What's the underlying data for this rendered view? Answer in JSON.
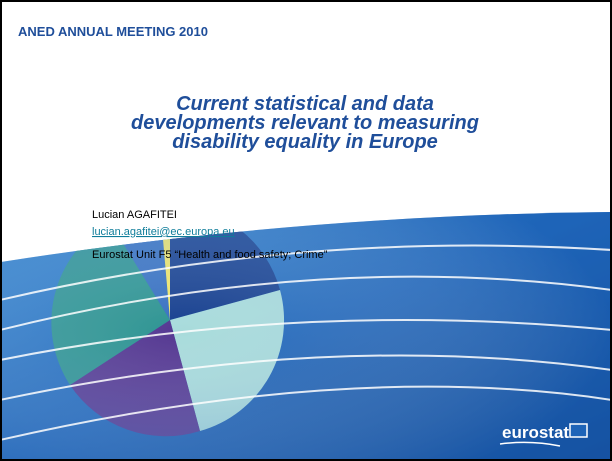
{
  "header": {
    "title": "ANED ANNUAL MEETING 2010"
  },
  "slide": {
    "title_lines": [
      "Current statistical and data",
      "developments relevant to measuring",
      "disability equality in Europe"
    ],
    "author": "Lucian AGAFITEI",
    "email": "lucian.agafitei@ec.europa.eu",
    "unit": "Eurostat Unit F5 “Health and food safety; Crime”"
  },
  "logo": {
    "text": "eurostat"
  }
}
